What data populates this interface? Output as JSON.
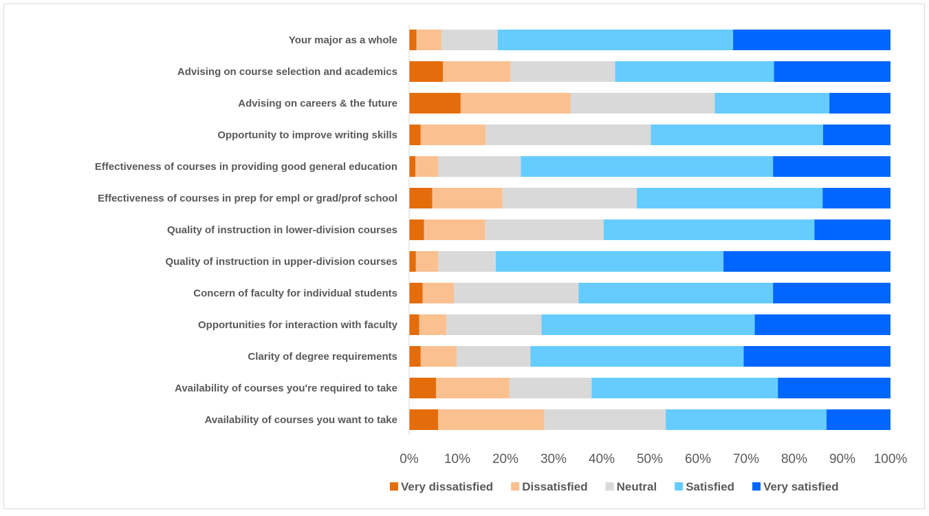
{
  "chart_data": {
    "type": "bar",
    "orientation": "horizontal",
    "stacked": true,
    "percent_stacked": true,
    "title": "",
    "categories": [
      "Your major as a whole",
      "Advising on course selection and academics",
      "Advising on careers & the future",
      "Opportunity to improve writing skills",
      "Effectiveness of courses in providing good general education",
      "Effectiveness of courses in prep for empl or grad/prof school",
      "Quality of instruction in lower-division courses",
      "Quality of instruction in upper-division courses",
      "Concern of faculty for individual students",
      "Opportunities for interaction with faculty",
      "Clarity of degree requirements",
      "Availability of courses you're required to take",
      "Availability of courses you want to take"
    ],
    "series": [
      {
        "name": "Very dissatisfied",
        "color": "#e46c0a",
        "values": [
          1.5,
          7.0,
          10.7,
          2.4,
          1.3,
          4.8,
          3.1,
          1.4,
          2.8,
          2.1,
          2.4,
          5.6,
          6.0
        ]
      },
      {
        "name": "Dissatisfied",
        "color": "#fac090",
        "values": [
          5.2,
          14.0,
          22.8,
          13.5,
          4.7,
          14.6,
          12.7,
          4.6,
          6.5,
          5.6,
          7.5,
          15.2,
          22.1
        ]
      },
      {
        "name": "Neutral",
        "color": "#d9d9d9",
        "values": [
          11.7,
          21.8,
          30.0,
          34.3,
          17.2,
          27.9,
          24.6,
          12.0,
          25.9,
          19.8,
          15.3,
          17.1,
          25.2
        ]
      },
      {
        "name": "Satisfied",
        "color": "#66ccff",
        "values": [
          48.9,
          33.0,
          23.8,
          35.8,
          52.4,
          38.6,
          43.8,
          47.3,
          40.4,
          44.3,
          44.3,
          38.7,
          33.4
        ]
      },
      {
        "name": "Very satisfied",
        "color": "#0066ff",
        "values": [
          32.7,
          24.2,
          12.7,
          14.0,
          24.4,
          14.1,
          15.8,
          34.7,
          24.4,
          28.2,
          30.5,
          23.4,
          13.3
        ]
      }
    ],
    "x_axis": {
      "range": [
        0,
        100
      ],
      "tick_labels": [
        "0%",
        "10%",
        "20%",
        "30%",
        "40%",
        "50%",
        "60%",
        "70%",
        "80%",
        "90%",
        "100%"
      ]
    },
    "grid": false,
    "legend": {
      "position": "bottom"
    }
  }
}
